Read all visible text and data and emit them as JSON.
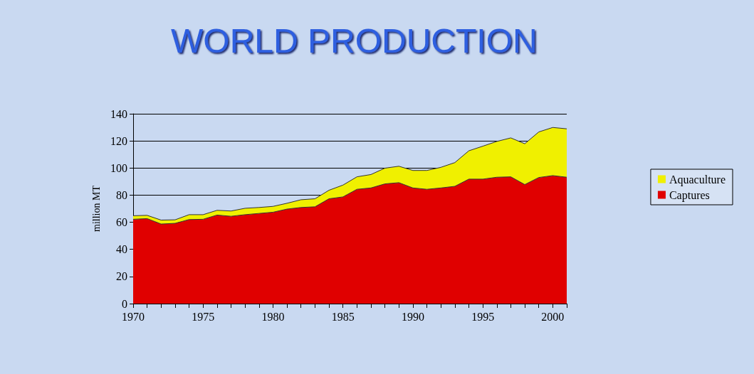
{
  "chart_data": {
    "type": "area",
    "title": "WORLD PRODUCTION",
    "ylabel": "million MT",
    "stacked": true,
    "categories": [
      "1970",
      null,
      null,
      null,
      null,
      "1975",
      null,
      null,
      null,
      null,
      "1980",
      null,
      null,
      null,
      null,
      "1985",
      null,
      null,
      null,
      null,
      "1990",
      null,
      null,
      null,
      null,
      "1995",
      null,
      null,
      null,
      null,
      "2000",
      null
    ],
    "series": [
      {
        "name": "Captures",
        "color": "#e00000",
        "values": [
          62.2,
          62.7,
          58.7,
          59.2,
          62,
          62.2,
          65.3,
          64.4,
          65.6,
          66.5,
          67.4,
          69.7,
          70.9,
          71.4,
          77.3,
          78.7,
          84.3,
          85.3,
          88.3,
          89.2,
          85.3,
          84.3,
          85.3,
          86.5,
          91.8,
          91.8,
          93.2,
          93.5,
          87.8,
          93,
          94.4,
          93.2
        ]
      },
      {
        "name": "Aquaculture",
        "color": "#f0f000",
        "values": [
          2.6,
          2.4,
          2.9,
          2.6,
          3.6,
          3.4,
          3.5,
          3.9,
          4.7,
          4.4,
          4.3,
          4.3,
          5.7,
          5.9,
          6.3,
          8.7,
          9.2,
          9.9,
          11.6,
          12.1,
          12.9,
          13.9,
          15.2,
          17.5,
          20.9,
          24.3,
          26.4,
          28.7,
          30.1,
          33.6,
          35.5,
          35.7
        ]
      }
    ],
    "ylim": [
      0,
      140
    ],
    "yticks": [
      0,
      20,
      40,
      60,
      80,
      100,
      120,
      140
    ],
    "grid": "y",
    "legend": "right"
  }
}
